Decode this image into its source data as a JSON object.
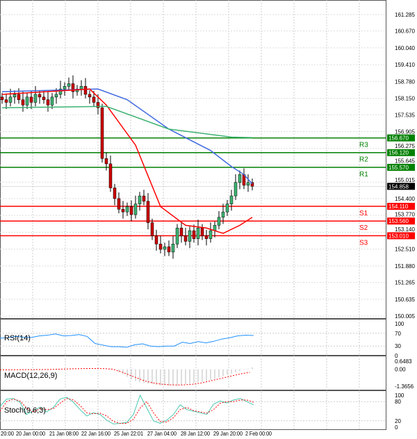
{
  "chart_data": [
    {
      "type": "candlestick",
      "title": "",
      "yaxis_ticks": [
        "161.285",
        "160.670",
        "160.040",
        "159.410",
        "158.780",
        "158.150",
        "157.535",
        "156.905",
        "156.275",
        "155.645",
        "155.015",
        "154.400",
        "153.770",
        "153.140",
        "152.510",
        "151.880",
        "151.265",
        "150.635",
        "150.005"
      ],
      "ylim": [
        150.005,
        161.285
      ],
      "current_price": "154.858",
      "levels": [
        {
          "name": "R3",
          "value": "156.670",
          "color": "#008000"
        },
        {
          "name": "R2",
          "value": "156.120",
          "color": "#008000"
        },
        {
          "name": "R1",
          "value": "155.570",
          "color": "#008000"
        },
        {
          "name": "S1",
          "value": "154.110",
          "color": "#ff0000"
        },
        {
          "name": "S2",
          "value": "153.560",
          "color": "#ff0000"
        },
        {
          "name": "S3",
          "value": "153.010",
          "color": "#ff0000"
        }
      ],
      "closes": [
        158.1,
        158.0,
        158.2,
        158.3,
        158.1,
        157.9,
        158.2,
        158.0,
        158.3,
        158.2,
        158.1,
        157.9,
        158.2,
        158.3,
        158.5,
        158.6,
        158.7,
        158.4,
        158.5,
        158.6,
        158.3,
        158.2,
        158.0,
        157.8,
        155.9,
        155.7,
        154.8,
        154.4,
        154.0,
        153.9,
        154.1,
        153.8,
        154.2,
        154.5,
        154.3,
        153.5,
        153.0,
        152.7,
        152.5,
        152.6,
        152.4,
        152.7,
        153.3,
        153.0,
        152.8,
        153.2,
        152.9,
        153.3,
        153.0,
        152.9,
        153.2,
        153.4,
        153.7,
        153.9,
        154.2,
        154.5,
        155.0,
        155.3,
        154.9,
        155.0,
        154.86
      ],
      "moving_averages": [
        {
          "color": "#4169e1",
          "points": [
            [
              0,
              158.4
            ],
            [
              23,
              158.5
            ],
            [
              30,
              158.1
            ],
            [
              40,
              157.0
            ],
            [
              50,
              156.2
            ],
            [
              55,
              155.6
            ],
            [
              58,
              155.3
            ],
            [
              60,
              154.95
            ]
          ]
        },
        {
          "color": "#ff0000",
          "points": [
            [
              0,
              158.3
            ],
            [
              21,
              158.5
            ],
            [
              25,
              157.9
            ],
            [
              32,
              156.4
            ],
            [
              38,
              154.1
            ],
            [
              44,
              153.4
            ],
            [
              49,
              153.3
            ],
            [
              53,
              153.1
            ],
            [
              57,
              153.4
            ],
            [
              60,
              153.7
            ]
          ]
        },
        {
          "color": "#3cb371",
          "points": [
            [
              0,
              157.8
            ],
            [
              25,
              157.85
            ],
            [
              40,
              157.0
            ],
            [
              55,
              156.7
            ],
            [
              60,
              156.68
            ]
          ]
        }
      ],
      "xaxis_ticks": [
        "20:00",
        "20 Jan 00:00",
        "21 Jan 08:00",
        "22 Jan 16:00",
        "25 Jan 22:01",
        "27 Jan 04:00",
        "28 Jan 12:00",
        "29 Jan 20:00",
        "2 Feb 00:00"
      ]
    },
    {
      "type": "line",
      "title": "RSI(14)",
      "yaxis_ticks": [
        "100",
        "70",
        "30",
        "0"
      ],
      "ylim": [
        0,
        100
      ],
      "color": "#1e90ff",
      "values": [
        55,
        56,
        60,
        58,
        57,
        62,
        64,
        68,
        62,
        63,
        66,
        60,
        38,
        33,
        28,
        28,
        26,
        34,
        37,
        30,
        28,
        30,
        30,
        42,
        38,
        44,
        40,
        45,
        52,
        56,
        62,
        64,
        63
      ]
    },
    {
      "type": "bar_line",
      "title": "MACD(12,26,9)",
      "yaxis_ticks": [
        "0.6483",
        "0.00",
        "-1.3656"
      ],
      "ylim": [
        -1.3656,
        0.6483
      ],
      "histogram": [
        0,
        0,
        0,
        0,
        0,
        0,
        0,
        0,
        0,
        0,
        0,
        0,
        0,
        0,
        0,
        0,
        0,
        0,
        0,
        0,
        0,
        0,
        -0.05,
        -0.2,
        -0.4,
        -0.6,
        -0.8,
        -0.95,
        -1.05,
        -1.1,
        -1.15,
        -1.2,
        -1.25,
        -1.3,
        -1.3,
        -1.32,
        -1.3,
        -1.28,
        -1.25,
        -1.2,
        -1.15,
        -1.1,
        -1.05,
        -1.0,
        -0.95,
        -0.85,
        -0.75,
        -0.65,
        -0.55,
        -0.45,
        -0.35,
        -0.25,
        -0.15,
        -0.05,
        0.05,
        0.15
      ],
      "signal": [
        -0.05,
        -0.05,
        -0.04,
        -0.03,
        -0.03,
        -0.02,
        -0.02,
        0.0,
        0.02,
        0.04,
        0.05,
        0.06,
        0.06,
        0.05,
        0.0,
        -0.2,
        -0.45,
        -0.7,
        -0.95,
        -1.1,
        -1.2,
        -1.25,
        -1.27,
        -1.25,
        -1.2,
        -1.1,
        -0.95,
        -0.8,
        -0.65,
        -0.5,
        -0.35,
        -0.25
      ]
    },
    {
      "type": "line",
      "title": "Stoch(9,6,3)",
      "yaxis_ticks": [
        "100",
        "80",
        "20",
        "0"
      ],
      "ylim": [
        0,
        100
      ],
      "series": [
        {
          "color": "#48c9b0",
          "values": [
            65,
            88,
            90,
            78,
            40,
            52,
            62,
            48,
            62,
            88,
            94,
            78,
            55,
            35,
            45,
            40,
            22,
            10,
            12,
            15,
            40,
            100,
            60,
            20,
            12,
            22,
            40,
            70,
            55,
            50,
            45,
            40,
            72,
            82,
            76,
            85,
            90,
            80,
            70
          ]
        },
        {
          "color": "#ff0000",
          "values": [
            50,
            80,
            88,
            82,
            60,
            48,
            58,
            55,
            58,
            75,
            90,
            85,
            68,
            45,
            42,
            44,
            35,
            18,
            12,
            12,
            25,
            60,
            80,
            45,
            18,
            16,
            30,
            55,
            62,
            52,
            48,
            44,
            55,
            75,
            80,
            80,
            85,
            85,
            78
          ]
        }
      ]
    }
  ]
}
